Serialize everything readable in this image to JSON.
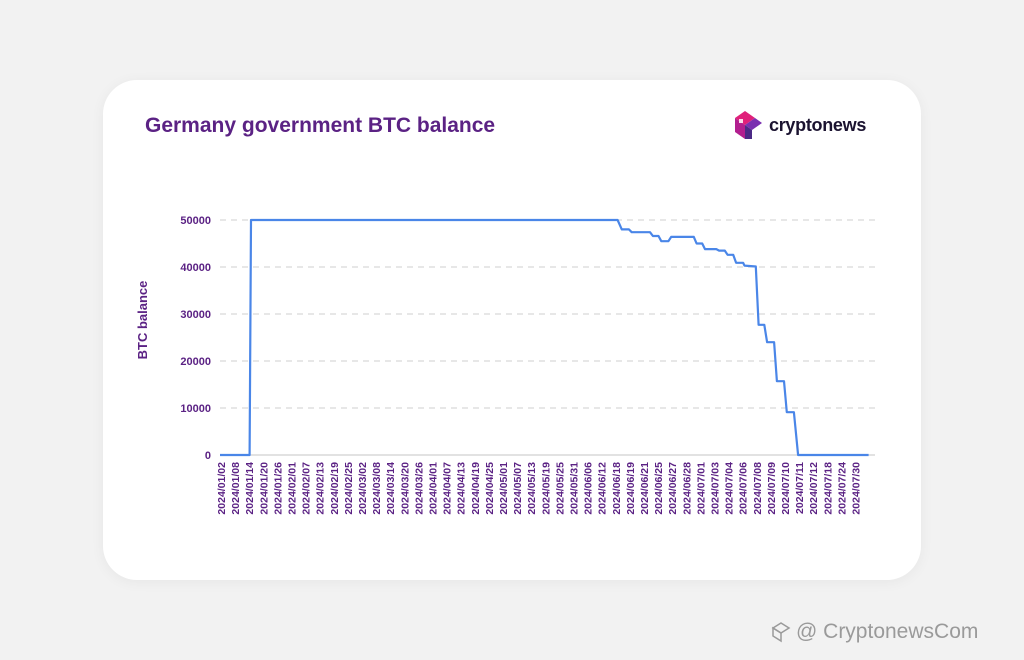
{
  "header": {
    "title": "Germany government BTC balance",
    "brand": "cryptonews"
  },
  "watermark": {
    "text": "@ CryptonewsCom"
  },
  "colors": {
    "title": "#5b2284",
    "line": "#4a86e8",
    "axis_text": "#5b2284",
    "grid": "#cfcfcf",
    "brand_pink": "#e0207a",
    "brand_purple": "#7a2fb0"
  },
  "chart_data": {
    "type": "line",
    "title": "Germany government BTC balance",
    "xlabel": "",
    "ylabel": "BTC balance",
    "ylim": [
      0,
      50000
    ],
    "yticks": [
      0,
      10000,
      20000,
      30000,
      40000,
      50000
    ],
    "grid": true,
    "x_tick_labels": [
      "2024/01/02",
      "2024/01/08",
      "2024/01/14",
      "2024/01/20",
      "2024/01/26",
      "2024/02/01",
      "2024/02/07",
      "2024/02/13",
      "2024/02/19",
      "2024/02/25",
      "2024/03/02",
      "2024/03/08",
      "2024/03/14",
      "2024/03/20",
      "2024/03/26",
      "2024/04/01",
      "2024/04/07",
      "2024/04/13",
      "2024/04/19",
      "2024/04/25",
      "2024/05/01",
      "2024/05/07",
      "2024/05/13",
      "2024/05/19",
      "2024/05/25",
      "2024/05/31",
      "2024/06/06",
      "2024/06/12",
      "2024/06/18",
      "2024/06/19",
      "2024/06/21",
      "2024/06/25",
      "2024/06/27",
      "2024/06/28",
      "2024/07/01",
      "2024/07/03",
      "2024/07/04",
      "2024/07/06",
      "2024/07/08",
      "2024/07/09",
      "2024/07/10",
      "2024/07/11",
      "2024/07/12",
      "2024/07/18",
      "2024/07/24",
      "2024/07/30"
    ],
    "series": [
      {
        "points": [
          {
            "x": 0,
            "y": 0
          },
          {
            "x": 2.1,
            "y": 0
          },
          {
            "x": 2.2,
            "y": 50000
          },
          {
            "x": 28.2,
            "y": 50000
          },
          {
            "x": 28.5,
            "y": 48000
          },
          {
            "x": 29.0,
            "y": 48000
          },
          {
            "x": 29.2,
            "y": 47400
          },
          {
            "x": 30.5,
            "y": 47400
          },
          {
            "x": 30.7,
            "y": 46600
          },
          {
            "x": 31.1,
            "y": 46600
          },
          {
            "x": 31.3,
            "y": 45500
          },
          {
            "x": 31.8,
            "y": 45500
          },
          {
            "x": 32.0,
            "y": 46400
          },
          {
            "x": 33.6,
            "y": 46400
          },
          {
            "x": 33.8,
            "y": 45000
          },
          {
            "x": 34.2,
            "y": 45000
          },
          {
            "x": 34.4,
            "y": 43800
          },
          {
            "x": 35.2,
            "y": 43800
          },
          {
            "x": 35.4,
            "y": 43500
          },
          {
            "x": 35.8,
            "y": 43500
          },
          {
            "x": 36.0,
            "y": 42600
          },
          {
            "x": 36.4,
            "y": 42600
          },
          {
            "x": 36.6,
            "y": 40900
          },
          {
            "x": 37.1,
            "y": 40900
          },
          {
            "x": 37.2,
            "y": 40300
          },
          {
            "x": 38.0,
            "y": 40100
          },
          {
            "x": 38.2,
            "y": 27700
          },
          {
            "x": 38.6,
            "y": 27700
          },
          {
            "x": 38.8,
            "y": 24000
          },
          {
            "x": 39.3,
            "y": 24000
          },
          {
            "x": 39.5,
            "y": 15700
          },
          {
            "x": 40.0,
            "y": 15700
          },
          {
            "x": 40.2,
            "y": 9100
          },
          {
            "x": 40.7,
            "y": 9100
          },
          {
            "x": 41.0,
            "y": 0
          },
          {
            "x": 46.0,
            "y": 0
          }
        ]
      }
    ]
  }
}
